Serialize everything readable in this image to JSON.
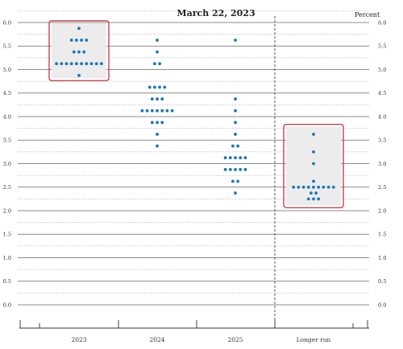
{
  "chart_data": {
    "type": "scatter",
    "title": "March 22, 2023",
    "unit_label": "Percent",
    "ylim": [
      0.0,
      6.0
    ],
    "yticks": [
      "6.0",
      "5.5",
      "5.0",
      "4.5",
      "4.0",
      "3.5",
      "3.0",
      "2.5",
      "2.0",
      "1.5",
      "1.0",
      "0.5",
      "0.0"
    ],
    "categories": [
      "2023",
      "2024",
      "2025",
      "Longer run"
    ],
    "series": [
      {
        "category": "2023",
        "dots": [
          {
            "y": 5.875,
            "count": 1
          },
          {
            "y": 5.625,
            "count": 4
          },
          {
            "y": 5.375,
            "count": 3
          },
          {
            "y": 5.125,
            "count": 10
          },
          {
            "y": 4.875,
            "count": 1
          }
        ]
      },
      {
        "category": "2024",
        "dots": [
          {
            "y": 5.625,
            "count": 1
          },
          {
            "y": 5.375,
            "count": 1
          },
          {
            "y": 5.125,
            "count": 2
          },
          {
            "y": 4.625,
            "count": 4
          },
          {
            "y": 4.375,
            "count": 3
          },
          {
            "y": 4.125,
            "count": 7
          },
          {
            "y": 3.875,
            "count": 3
          },
          {
            "y": 3.625,
            "count": 1
          },
          {
            "y": 3.375,
            "count": 1
          }
        ]
      },
      {
        "category": "2025",
        "dots": [
          {
            "y": 5.625,
            "count": 1
          },
          {
            "y": 4.375,
            "count": 1
          },
          {
            "y": 4.125,
            "count": 1
          },
          {
            "y": 3.875,
            "count": 1
          },
          {
            "y": 3.625,
            "count": 1
          },
          {
            "y": 3.375,
            "count": 2
          },
          {
            "y": 3.125,
            "count": 5
          },
          {
            "y": 2.875,
            "count": 5
          },
          {
            "y": 2.625,
            "count": 2
          },
          {
            "y": 2.375,
            "count": 1
          }
        ]
      },
      {
        "category": "Longer run",
        "dots": [
          {
            "y": 3.625,
            "count": 1
          },
          {
            "y": 3.25,
            "count": 1
          },
          {
            "y": 3.0,
            "count": 1
          },
          {
            "y": 2.625,
            "count": 1
          },
          {
            "y": 2.5,
            "count": 9
          },
          {
            "y": 2.375,
            "count": 2
          },
          {
            "y": 2.25,
            "count": 3
          }
        ]
      }
    ],
    "highlighted_categories": [
      "2023",
      "Longer run"
    ],
    "grid": true,
    "colors": {
      "dot": "#1f77b4",
      "highlight_box": "#cc2f3f",
      "highlight_fill": "#ececec",
      "grid_major": "#666666",
      "grid_minor": "#888888"
    }
  }
}
